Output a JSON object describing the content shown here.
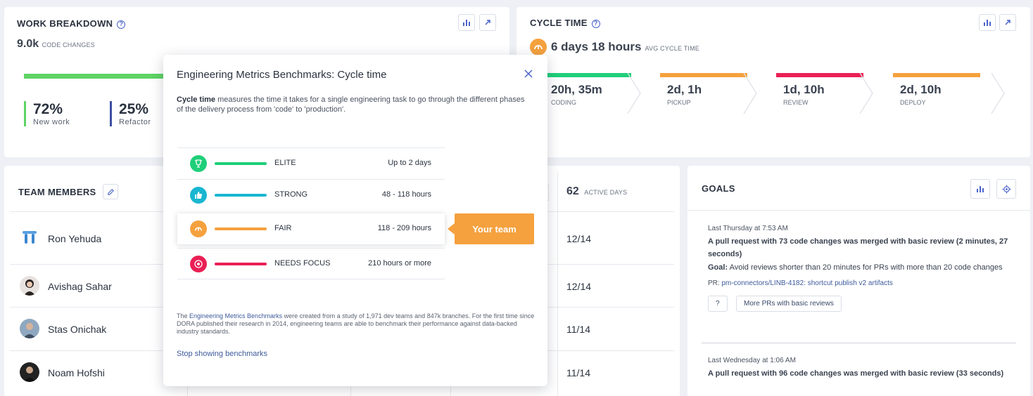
{
  "work_breakdown": {
    "title": "WORK BREAKDOWN",
    "total": "9.0k",
    "total_label": "CODE CHANGES",
    "items": [
      {
        "percent": "72%",
        "label": "New work",
        "color": "#5fd365"
      },
      {
        "percent": "25%",
        "label": "Refactor",
        "color": "#3c4fa3"
      }
    ]
  },
  "cycle_time": {
    "title": "CYCLE TIME",
    "value": "6 days 18 hours",
    "value_label": "AVG CYCLE TIME",
    "stages": [
      {
        "value": "20h, 35m",
        "label": "CODING",
        "color": "#1fcf79"
      },
      {
        "value": "2d, 1h",
        "label": "PICKUP",
        "color": "#f5a13e"
      },
      {
        "value": "1d, 10h",
        "label": "REVIEW",
        "color": "#ea1f55"
      },
      {
        "value": "2d, 10h",
        "label": "DEPLOY",
        "color": "#f5a13e"
      }
    ]
  },
  "team_members": {
    "title": "TEAM MEMBERS",
    "active_days_total": "62",
    "active_days_label": "ACTIVE DAYS",
    "members": [
      {
        "name": "Ron Yehuda",
        "days": "12/14"
      },
      {
        "name": "Avishag Sahar",
        "days": "12/14"
      },
      {
        "name": "Stas Onichak",
        "days": "11/14"
      },
      {
        "name": "Noam Hofshi",
        "days": "11/14"
      }
    ]
  },
  "goals": {
    "title": "GOALS",
    "entries": [
      {
        "time": "Last Thursday at 7:53 AM",
        "headline": "A pull request with 73 code changes was merged with basic review (2 minutes, 27 seconds)",
        "goal_label": "Goal:",
        "goal_text": "Avoid reviews shorter than 20 minutes for PRs with more than 20 code changes",
        "pr_label": "PR:",
        "pr_link": "pm-connectors/LINB-4182: shortcut publish v2 artifacts",
        "help_btn": "?",
        "more_btn": "More PRs with basic reviews"
      },
      {
        "time": "Last Wednesday at 1:06 AM",
        "headline": "A pull request with 96 code changes was merged with basic review (33 seconds)"
      }
    ]
  },
  "popover": {
    "title": "Engineering Metrics Benchmarks: Cycle time",
    "desc_bold": "Cycle time",
    "desc_rest": " measures the time it takes for a single engineering task to go through the different phases of the delivery process from 'code' to 'production'.",
    "tiers": [
      {
        "name": "ELITE",
        "range": "Up to 2 days",
        "color": "#1fcf79",
        "icon": "trophy-icon"
      },
      {
        "name": "STRONG",
        "range": "48 - 118 hours",
        "color": "#19b6d1",
        "icon": "thumbs-up-icon"
      },
      {
        "name": "FAIR",
        "range": "118 - 209 hours",
        "color": "#f5a13e",
        "icon": "gauge-icon"
      },
      {
        "name": "NEEDS FOCUS",
        "range": "210 hours or more",
        "color": "#ea1f55",
        "icon": "target-icon"
      }
    ],
    "your_team": "Your team",
    "footer_pre": "The ",
    "footer_link": "Engineering Metrics Benchmarks",
    "footer_post": " were created from a study of 1,971 dev teams and 847k branches. For the first time since DORA published their research in 2014, engineering teams are able to benchmark their performance against data-backed industry standards.",
    "stop_link": "Stop showing benchmarks"
  }
}
